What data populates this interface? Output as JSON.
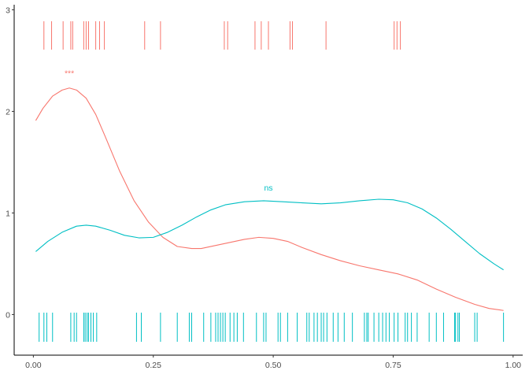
{
  "chart_data": {
    "type": "line",
    "title": "",
    "xlabel": "",
    "ylabel": "",
    "xlim": [
      -0.04,
      1.02
    ],
    "ylim": [
      -0.4,
      3.05
    ],
    "x_ticks": [
      0.0,
      0.25,
      0.5,
      0.75,
      1.0
    ],
    "x_tick_labels": [
      "0.00",
      "0.25",
      "0.50",
      "0.75",
      "1.00"
    ],
    "y_ticks": [
      0,
      1,
      2,
      3
    ],
    "y_tick_labels": [
      "0",
      "1",
      "2",
      "3"
    ],
    "grid": false,
    "legend": "none",
    "series": [
      {
        "color": "#F8766D",
        "density_x": [
          0.005,
          0.02,
          0.04,
          0.06,
          0.075,
          0.09,
          0.11,
          0.13,
          0.15,
          0.18,
          0.21,
          0.24,
          0.27,
          0.3,
          0.33,
          0.35,
          0.38,
          0.41,
          0.44,
          0.47,
          0.5,
          0.53,
          0.56,
          0.6,
          0.64,
          0.68,
          0.72,
          0.76,
          0.8,
          0.84,
          0.88,
          0.92,
          0.95,
          0.98
        ],
        "density_y": [
          1.91,
          2.03,
          2.15,
          2.21,
          2.23,
          2.21,
          2.13,
          1.97,
          1.75,
          1.41,
          1.12,
          0.91,
          0.76,
          0.67,
          0.65,
          0.65,
          0.68,
          0.71,
          0.74,
          0.76,
          0.75,
          0.72,
          0.66,
          0.59,
          0.53,
          0.48,
          0.44,
          0.4,
          0.34,
          0.25,
          0.17,
          0.1,
          0.06,
          0.04
        ],
        "rug": [
          0.022,
          0.038,
          0.062,
          0.078,
          0.082,
          0.105,
          0.11,
          0.115,
          0.13,
          0.138,
          0.148,
          0.232,
          0.265,
          0.398,
          0.405,
          0.462,
          0.475,
          0.49,
          0.535,
          0.54,
          0.61,
          0.752,
          0.758,
          0.765
        ],
        "annotation": {
          "text": "***",
          "x": 0.075,
          "y": 2.35
        }
      },
      {
        "color": "#00BFC4",
        "density_x": [
          0.005,
          0.03,
          0.06,
          0.09,
          0.11,
          0.13,
          0.16,
          0.19,
          0.22,
          0.25,
          0.28,
          0.31,
          0.34,
          0.37,
          0.4,
          0.44,
          0.48,
          0.52,
          0.56,
          0.6,
          0.64,
          0.68,
          0.72,
          0.75,
          0.78,
          0.81,
          0.84,
          0.87,
          0.9,
          0.93,
          0.96,
          0.98
        ],
        "density_y": [
          0.62,
          0.72,
          0.81,
          0.87,
          0.88,
          0.87,
          0.83,
          0.78,
          0.755,
          0.76,
          0.81,
          0.88,
          0.96,
          1.03,
          1.08,
          1.11,
          1.12,
          1.11,
          1.1,
          1.09,
          1.1,
          1.12,
          1.135,
          1.13,
          1.1,
          1.04,
          0.95,
          0.84,
          0.72,
          0.6,
          0.5,
          0.44
        ],
        "rug": [
          0.012,
          0.022,
          0.028,
          0.04,
          0.078,
          0.085,
          0.09,
          0.105,
          0.108,
          0.112,
          0.115,
          0.12,
          0.125,
          0.132,
          0.215,
          0.225,
          0.265,
          0.3,
          0.325,
          0.33,
          0.355,
          0.37,
          0.38,
          0.385,
          0.39,
          0.395,
          0.4,
          0.41,
          0.418,
          0.425,
          0.438,
          0.465,
          0.48,
          0.485,
          0.51,
          0.515,
          0.53,
          0.55,
          0.57,
          0.575,
          0.585,
          0.592,
          0.6,
          0.605,
          0.612,
          0.625,
          0.635,
          0.648,
          0.665,
          0.69,
          0.695,
          0.698,
          0.71,
          0.72,
          0.728,
          0.735,
          0.742,
          0.752,
          0.76,
          0.775,
          0.78,
          0.788,
          0.8,
          0.825,
          0.84,
          0.855,
          0.878,
          0.88,
          0.885,
          0.888,
          0.92,
          0.925,
          0.98
        ],
        "annotation": {
          "text": "ns",
          "x": 0.49,
          "y": 1.22
        }
      }
    ]
  }
}
